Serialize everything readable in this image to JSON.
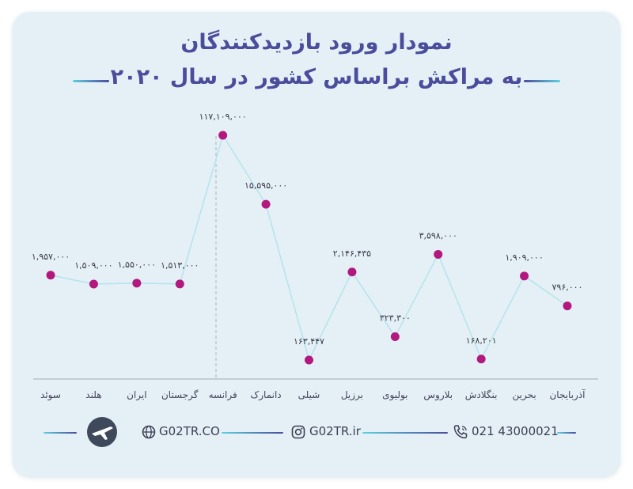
{
  "title_line1": "نمودار ورود بازدیدکنندگان",
  "title_line2": "به مراکش براساس کشور در سال ۲۰۲۰",
  "colors": {
    "title": "#4b4c9b",
    "point": "#b2187e",
    "line": "#b4e3ef",
    "axis": "#b9c2c7",
    "accent_cyan": "#5fd0e0",
    "accent_indigo": "#4b4c9b"
  },
  "footer": {
    "website1": "G02TR.CO",
    "website2": "G02TR.ir",
    "phone": "021 43000021",
    "icons": [
      "airplane-logo-icon",
      "globe-icon",
      "instagram-icon",
      "phone-icon"
    ]
  },
  "chart_data": {
    "type": "line",
    "categories": [
      "سوئد",
      "هلند",
      "ایران",
      "گرجستان",
      "فرانسه",
      "دانمارک",
      "شیلی",
      "برزیل",
      "بولیوی",
      "بلاروس",
      "بنگلادش",
      "بحرین",
      "آذربایجان"
    ],
    "values": [
      1957000,
      1509000,
      1550000,
      1513000,
      117109000,
      15595000,
      163447,
      2146435,
      323300,
      3598000,
      168201,
      1909000,
      796000
    ],
    "value_labels": [
      "۱,۹۵۷,۰۰۰",
      "۱,۵۰۹,۰۰۰",
      "۱,۵۵۰,۰۰۰",
      "۱,۵۱۳,۰۰۰",
      "۱۱۷,۱۰۹,۰۰۰",
      "۱۵,۵۹۵,۰۰۰",
      "۱۶۳,۴۴۷",
      "۲,۱۴۶,۴۳۵",
      "۳۲۳,۳۰۰",
      "۳,۵۹۸,۰۰۰",
      "۱۶۸,۲۰۱",
      "۱,۹۰۹,۰۰۰",
      "۷۹۶,۰۰۰"
    ],
    "title": "نمودار ورود بازدیدکنندگان به مراکش براساس کشور در سال ۲۰۲۰",
    "xlabel": "",
    "ylabel": "",
    "grid": false,
    "legend": "none"
  }
}
